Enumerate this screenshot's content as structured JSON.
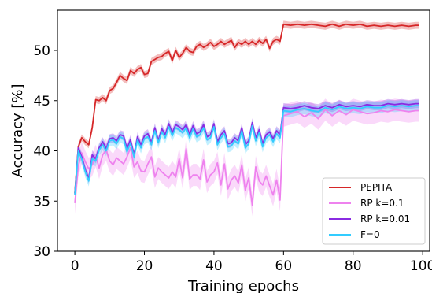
{
  "chart_data": {
    "type": "line",
    "xlabel": "Training epochs",
    "ylabel": "Accuracy [%]",
    "xlim": [
      -5,
      102
    ],
    "ylim": [
      30,
      54
    ],
    "xticks": [
      "0",
      "20",
      "40",
      "60",
      "80",
      "100"
    ],
    "yticks": [
      "30",
      "35",
      "40",
      "45",
      "50"
    ],
    "grid": false,
    "legend_position": "lower-right",
    "series": [
      {
        "name": "PEPITA",
        "color": "#d62728",
        "band": 0.35,
        "x": [
          0,
          1,
          2,
          3,
          4,
          5,
          6,
          7,
          8,
          9,
          10,
          11,
          12,
          13,
          14,
          15,
          16,
          17,
          18,
          19,
          20,
          21,
          22,
          23,
          24,
          25,
          26,
          27,
          28,
          29,
          30,
          31,
          32,
          33,
          34,
          35,
          36,
          37,
          38,
          39,
          40,
          41,
          42,
          43,
          44,
          45,
          46,
          47,
          48,
          49,
          50,
          51,
          52,
          53,
          54,
          55,
          56,
          57,
          58,
          59,
          60,
          62,
          64,
          66,
          68,
          70,
          72,
          74,
          76,
          78,
          80,
          82,
          84,
          86,
          88,
          90,
          92,
          94,
          96,
          98,
          99
        ],
        "y": [
          35.8,
          40.4,
          41.3,
          40.9,
          40.6,
          42.3,
          45.1,
          45.0,
          45.3,
          45.0,
          46.0,
          46.2,
          46.8,
          47.5,
          47.2,
          47.0,
          48.0,
          47.7,
          48.1,
          48.3,
          47.6,
          47.7,
          48.9,
          49.1,
          49.3,
          49.4,
          49.7,
          49.9,
          49.0,
          50.0,
          49.3,
          49.7,
          50.3,
          49.9,
          49.8,
          50.4,
          50.6,
          50.3,
          50.5,
          50.8,
          50.4,
          50.6,
          50.9,
          50.6,
          50.8,
          51.0,
          50.3,
          50.8,
          50.6,
          50.9,
          50.6,
          50.9,
          50.6,
          51.0,
          50.7,
          51.1,
          50.2,
          50.9,
          51.1,
          50.9,
          52.6,
          52.5,
          52.6,
          52.5,
          52.6,
          52.5,
          52.4,
          52.6,
          52.4,
          52.6,
          52.5,
          52.6,
          52.4,
          52.5,
          52.4,
          52.5,
          52.4,
          52.5,
          52.4,
          52.5,
          52.5
        ]
      },
      {
        "name": "RP k=0.1",
        "color": "#ee82ee",
        "band": 1.1,
        "x": [
          0,
          1,
          2,
          3,
          4,
          5,
          6,
          7,
          8,
          9,
          10,
          11,
          12,
          13,
          14,
          15,
          16,
          17,
          18,
          19,
          20,
          21,
          22,
          23,
          24,
          25,
          26,
          27,
          28,
          29,
          30,
          31,
          32,
          33,
          34,
          35,
          36,
          37,
          38,
          39,
          40,
          41,
          42,
          43,
          44,
          45,
          46,
          47,
          48,
          49,
          50,
          51,
          52,
          53,
          54,
          55,
          56,
          57,
          58,
          59,
          60,
          62,
          64,
          66,
          68,
          70,
          72,
          74,
          76,
          78,
          80,
          82,
          84,
          86,
          88,
          90,
          92,
          94,
          96,
          98,
          99
        ],
        "y": [
          34.8,
          38.5,
          39.8,
          38.9,
          38.2,
          38.6,
          39.5,
          38.3,
          39.6,
          40.1,
          39.0,
          38.6,
          39.3,
          39.0,
          38.7,
          39.4,
          40.3,
          38.4,
          38.9,
          38.0,
          37.9,
          38.7,
          39.4,
          37.4,
          38.3,
          37.9,
          37.6,
          37.3,
          37.9,
          37.4,
          39.2,
          37.3,
          40.2,
          37.2,
          37.6,
          37.6,
          37.2,
          39.1,
          36.9,
          37.6,
          37.9,
          38.8,
          36.6,
          38.7,
          36.2,
          37.1,
          37.5,
          36.8,
          38.6,
          36.1,
          37.3,
          34.6,
          38.4,
          37.0,
          36.6,
          37.5,
          36.5,
          35.6,
          37.1,
          35.1,
          43.5,
          43.7,
          43.9,
          43.4,
          43.8,
          43.2,
          44.1,
          43.5,
          44.0,
          43.6,
          44.1,
          43.9,
          43.7,
          43.8,
          44.0,
          43.9,
          44.1,
          44.0,
          43.9,
          44.0,
          44.0
        ]
      },
      {
        "name": "RP k=0.01",
        "color": "#8a2be2",
        "band": 0.45,
        "x": [
          0,
          1,
          2,
          3,
          4,
          5,
          6,
          7,
          8,
          9,
          10,
          11,
          12,
          13,
          14,
          15,
          16,
          17,
          18,
          19,
          20,
          21,
          22,
          23,
          24,
          25,
          26,
          27,
          28,
          29,
          30,
          31,
          32,
          33,
          34,
          35,
          36,
          37,
          38,
          39,
          40,
          41,
          42,
          43,
          44,
          45,
          46,
          47,
          48,
          49,
          50,
          51,
          52,
          53,
          54,
          55,
          56,
          57,
          58,
          59,
          60,
          62,
          64,
          66,
          68,
          70,
          72,
          74,
          76,
          78,
          80,
          82,
          84,
          86,
          88,
          90,
          92,
          94,
          96,
          98,
          99
        ],
        "y": [
          35.7,
          40.3,
          39.4,
          38.1,
          37.2,
          39.6,
          39.2,
          40.3,
          40.9,
          40.2,
          41.2,
          41.3,
          41.0,
          41.6,
          41.5,
          40.2,
          41.1,
          39.6,
          41.4,
          40.6,
          41.5,
          41.7,
          40.8,
          42.3,
          41.0,
          42.2,
          41.6,
          42.7,
          41.8,
          42.6,
          42.4,
          42.1,
          42.6,
          41.6,
          42.5,
          41.7,
          41.9,
          42.6,
          41.4,
          41.6,
          42.7,
          40.9,
          41.6,
          42.0,
          40.7,
          40.8,
          41.3,
          41.0,
          42.3,
          40.6,
          41.0,
          42.8,
          41.3,
          42.1,
          40.7,
          41.6,
          41.9,
          41.2,
          42.0,
          41.6,
          44.3,
          44.2,
          44.3,
          44.5,
          44.3,
          44.2,
          44.5,
          44.3,
          44.6,
          44.4,
          44.5,
          44.4,
          44.6,
          44.5,
          44.5,
          44.7,
          44.6,
          44.7,
          44.6,
          44.7,
          44.7
        ]
      },
      {
        "name": "F=0",
        "color": "#33ccff",
        "band": 0.55,
        "x": [
          0,
          1,
          2,
          3,
          4,
          5,
          6,
          7,
          8,
          9,
          10,
          11,
          12,
          13,
          14,
          15,
          16,
          17,
          18,
          19,
          20,
          21,
          22,
          23,
          24,
          25,
          26,
          27,
          28,
          29,
          30,
          31,
          32,
          33,
          34,
          35,
          36,
          37,
          38,
          39,
          40,
          41,
          42,
          43,
          44,
          45,
          46,
          47,
          48,
          49,
          50,
          51,
          52,
          53,
          54,
          55,
          56,
          57,
          58,
          59,
          60,
          62,
          64,
          66,
          68,
          70,
          72,
          74,
          76,
          78,
          80,
          82,
          84,
          86,
          88,
          90,
          92,
          94,
          96,
          98,
          99
        ],
        "y": [
          35.6,
          40.0,
          39.2,
          37.9,
          37.0,
          39.2,
          39.0,
          40.1,
          40.6,
          40.0,
          41.0,
          41.1,
          40.7,
          41.4,
          41.2,
          39.9,
          40.8,
          39.4,
          41.1,
          40.3,
          41.2,
          41.4,
          40.6,
          42.0,
          40.8,
          41.9,
          41.3,
          42.4,
          41.5,
          42.3,
          42.1,
          41.8,
          42.3,
          41.3,
          42.2,
          41.4,
          41.6,
          42.3,
          41.1,
          41.3,
          42.4,
          40.6,
          41.3,
          41.7,
          40.4,
          40.5,
          41.0,
          40.7,
          42.0,
          40.3,
          40.7,
          42.5,
          41.0,
          41.8,
          40.4,
          41.3,
          41.6,
          40.9,
          41.7,
          41.3,
          44.0,
          43.9,
          44.1,
          44.2,
          44.0,
          43.9,
          44.3,
          44.1,
          44.4,
          44.2,
          44.3,
          44.2,
          44.4,
          44.3,
          44.3,
          44.5,
          44.4,
          44.5,
          44.4,
          44.5,
          44.5
        ]
      }
    ]
  }
}
